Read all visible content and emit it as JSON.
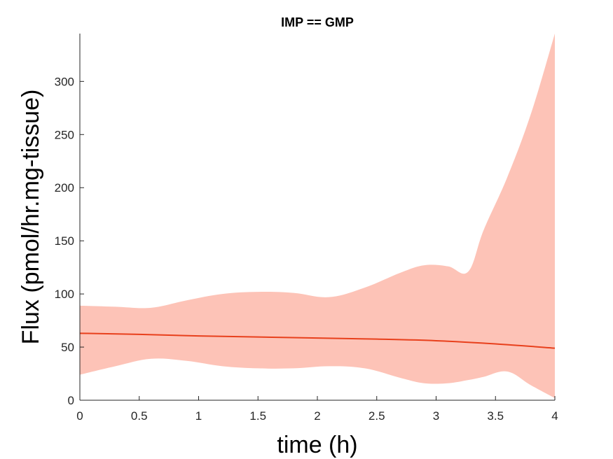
{
  "chart_data": {
    "type": "area",
    "title": "IMP == GMP",
    "xlabel": "time (h)",
    "ylabel": "Flux (pmol/hr.mg-tissue)",
    "xlim": [
      0,
      4
    ],
    "ylim": [
      0,
      345
    ],
    "xticks": [
      "0",
      "0.5",
      "1",
      "1.5",
      "2",
      "2.5",
      "3",
      "3.5",
      "4"
    ],
    "yticks": [
      "0",
      "50",
      "100",
      "150",
      "200",
      "250",
      "300"
    ],
    "grid": false,
    "series": [
      {
        "kind": "line",
        "color": "#E8401C",
        "x": [
          0,
          0.5,
          1,
          1.5,
          2,
          2.5,
          3,
          3.5,
          4
        ],
        "y": [
          63,
          62,
          60.5,
          59.5,
          58.5,
          57.5,
          56,
          53,
          49
        ]
      },
      {
        "kind": "band",
        "color": "#FDC3B7",
        "x": [
          0,
          0.3,
          0.6,
          0.9,
          1.2,
          1.5,
          1.8,
          2.1,
          2.4,
          2.7,
          2.9,
          3.1,
          3.27,
          3.4,
          3.6,
          3.8,
          4.0
        ],
        "upper": [
          89,
          88,
          87,
          94,
          100,
          102,
          101,
          97,
          106,
          120,
          127,
          126,
          121,
          160,
          210,
          270,
          345
        ],
        "lower": [
          24,
          32,
          39,
          37,
          32,
          30,
          30,
          32,
          30,
          21,
          16,
          16,
          19,
          22,
          27,
          14,
          2
        ]
      }
    ]
  }
}
